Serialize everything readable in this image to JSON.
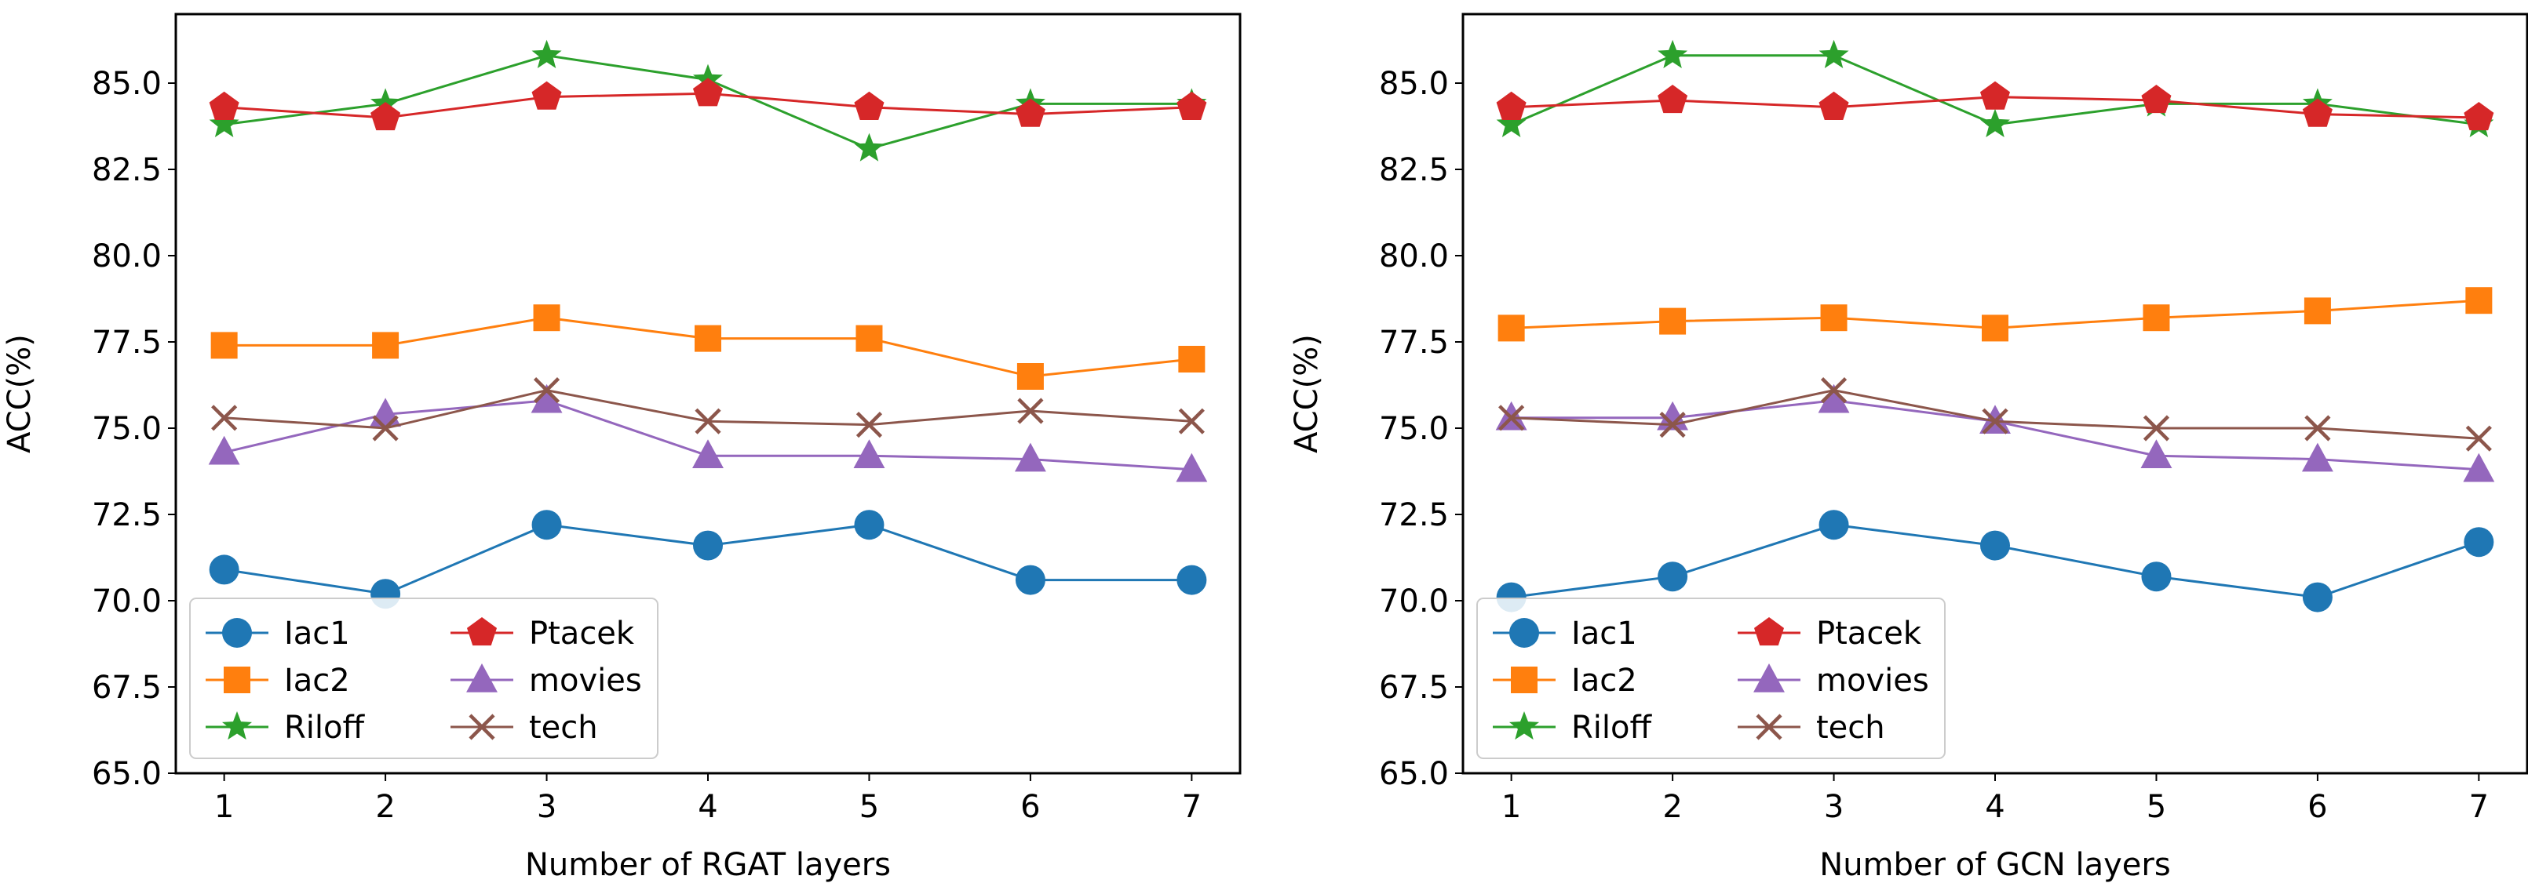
{
  "chart_data": [
    {
      "type": "line",
      "xlabel": "Number of RGAT layers",
      "ylabel": "ACC(%)",
      "x": [
        1,
        2,
        3,
        4,
        5,
        6,
        7
      ],
      "xlim": [
        0.7,
        7.3
      ],
      "ylim": [
        65.0,
        87.0
      ],
      "yticks": [
        "65.0",
        "67.5",
        "70.0",
        "72.5",
        "75.0",
        "77.5",
        "80.0",
        "82.5",
        "85.0"
      ],
      "xticks": [
        "1",
        "2",
        "3",
        "4",
        "5",
        "6",
        "7"
      ],
      "legend_position": "lower-left",
      "series": [
        {
          "name": "Iac1",
          "values": [
            70.9,
            70.2,
            72.2,
            71.6,
            72.2,
            70.6,
            70.6
          ]
        },
        {
          "name": "Iac2",
          "values": [
            77.4,
            77.4,
            78.2,
            77.6,
            77.6,
            76.5,
            77.0
          ]
        },
        {
          "name": "Riloff",
          "values": [
            83.8,
            84.4,
            85.8,
            85.1,
            83.1,
            84.4,
            84.4
          ]
        },
        {
          "name": "Ptacek",
          "values": [
            84.3,
            84.0,
            84.6,
            84.7,
            84.3,
            84.1,
            84.3
          ]
        },
        {
          "name": "movies",
          "values": [
            74.3,
            75.4,
            75.8,
            74.2,
            74.2,
            74.1,
            73.8
          ]
        },
        {
          "name": "tech",
          "values": [
            75.3,
            75.0,
            76.1,
            75.2,
            75.1,
            75.5,
            75.2
          ]
        }
      ]
    },
    {
      "type": "line",
      "xlabel": "Number of GCN layers",
      "ylabel": "ACC(%)",
      "x": [
        1,
        2,
        3,
        4,
        5,
        6,
        7
      ],
      "xlim": [
        0.7,
        7.3
      ],
      "ylim": [
        65.0,
        87.0
      ],
      "yticks": [
        "65.0",
        "67.5",
        "70.0",
        "72.5",
        "75.0",
        "77.5",
        "80.0",
        "82.5",
        "85.0"
      ],
      "xticks": [
        "1",
        "2",
        "3",
        "4",
        "5",
        "6",
        "7"
      ],
      "legend_position": "lower-left",
      "series": [
        {
          "name": "Iac1",
          "values": [
            70.1,
            70.7,
            72.2,
            71.6,
            70.7,
            70.1,
            71.7
          ]
        },
        {
          "name": "Iac2",
          "values": [
            77.9,
            78.1,
            78.2,
            77.9,
            78.2,
            78.4,
            78.7
          ]
        },
        {
          "name": "Riloff",
          "values": [
            83.8,
            85.8,
            85.8,
            83.8,
            84.4,
            84.4,
            83.8
          ]
        },
        {
          "name": "Ptacek",
          "values": [
            84.3,
            84.5,
            84.3,
            84.6,
            84.5,
            84.1,
            84.0
          ]
        },
        {
          "name": "movies",
          "values": [
            75.3,
            75.3,
            75.8,
            75.2,
            74.2,
            74.1,
            73.8
          ]
        },
        {
          "name": "tech",
          "values": [
            75.3,
            75.1,
            76.1,
            75.2,
            75.0,
            75.0,
            74.7
          ]
        }
      ]
    }
  ],
  "series_style": [
    {
      "color": "#1f77b4",
      "marker": "circle"
    },
    {
      "color": "#ff7f0e",
      "marker": "square"
    },
    {
      "color": "#2ca02c",
      "marker": "star"
    },
    {
      "color": "#d62728",
      "marker": "pentagon"
    },
    {
      "color": "#9467bd",
      "marker": "triangle"
    },
    {
      "color": "#8c564b",
      "marker": "x"
    }
  ]
}
